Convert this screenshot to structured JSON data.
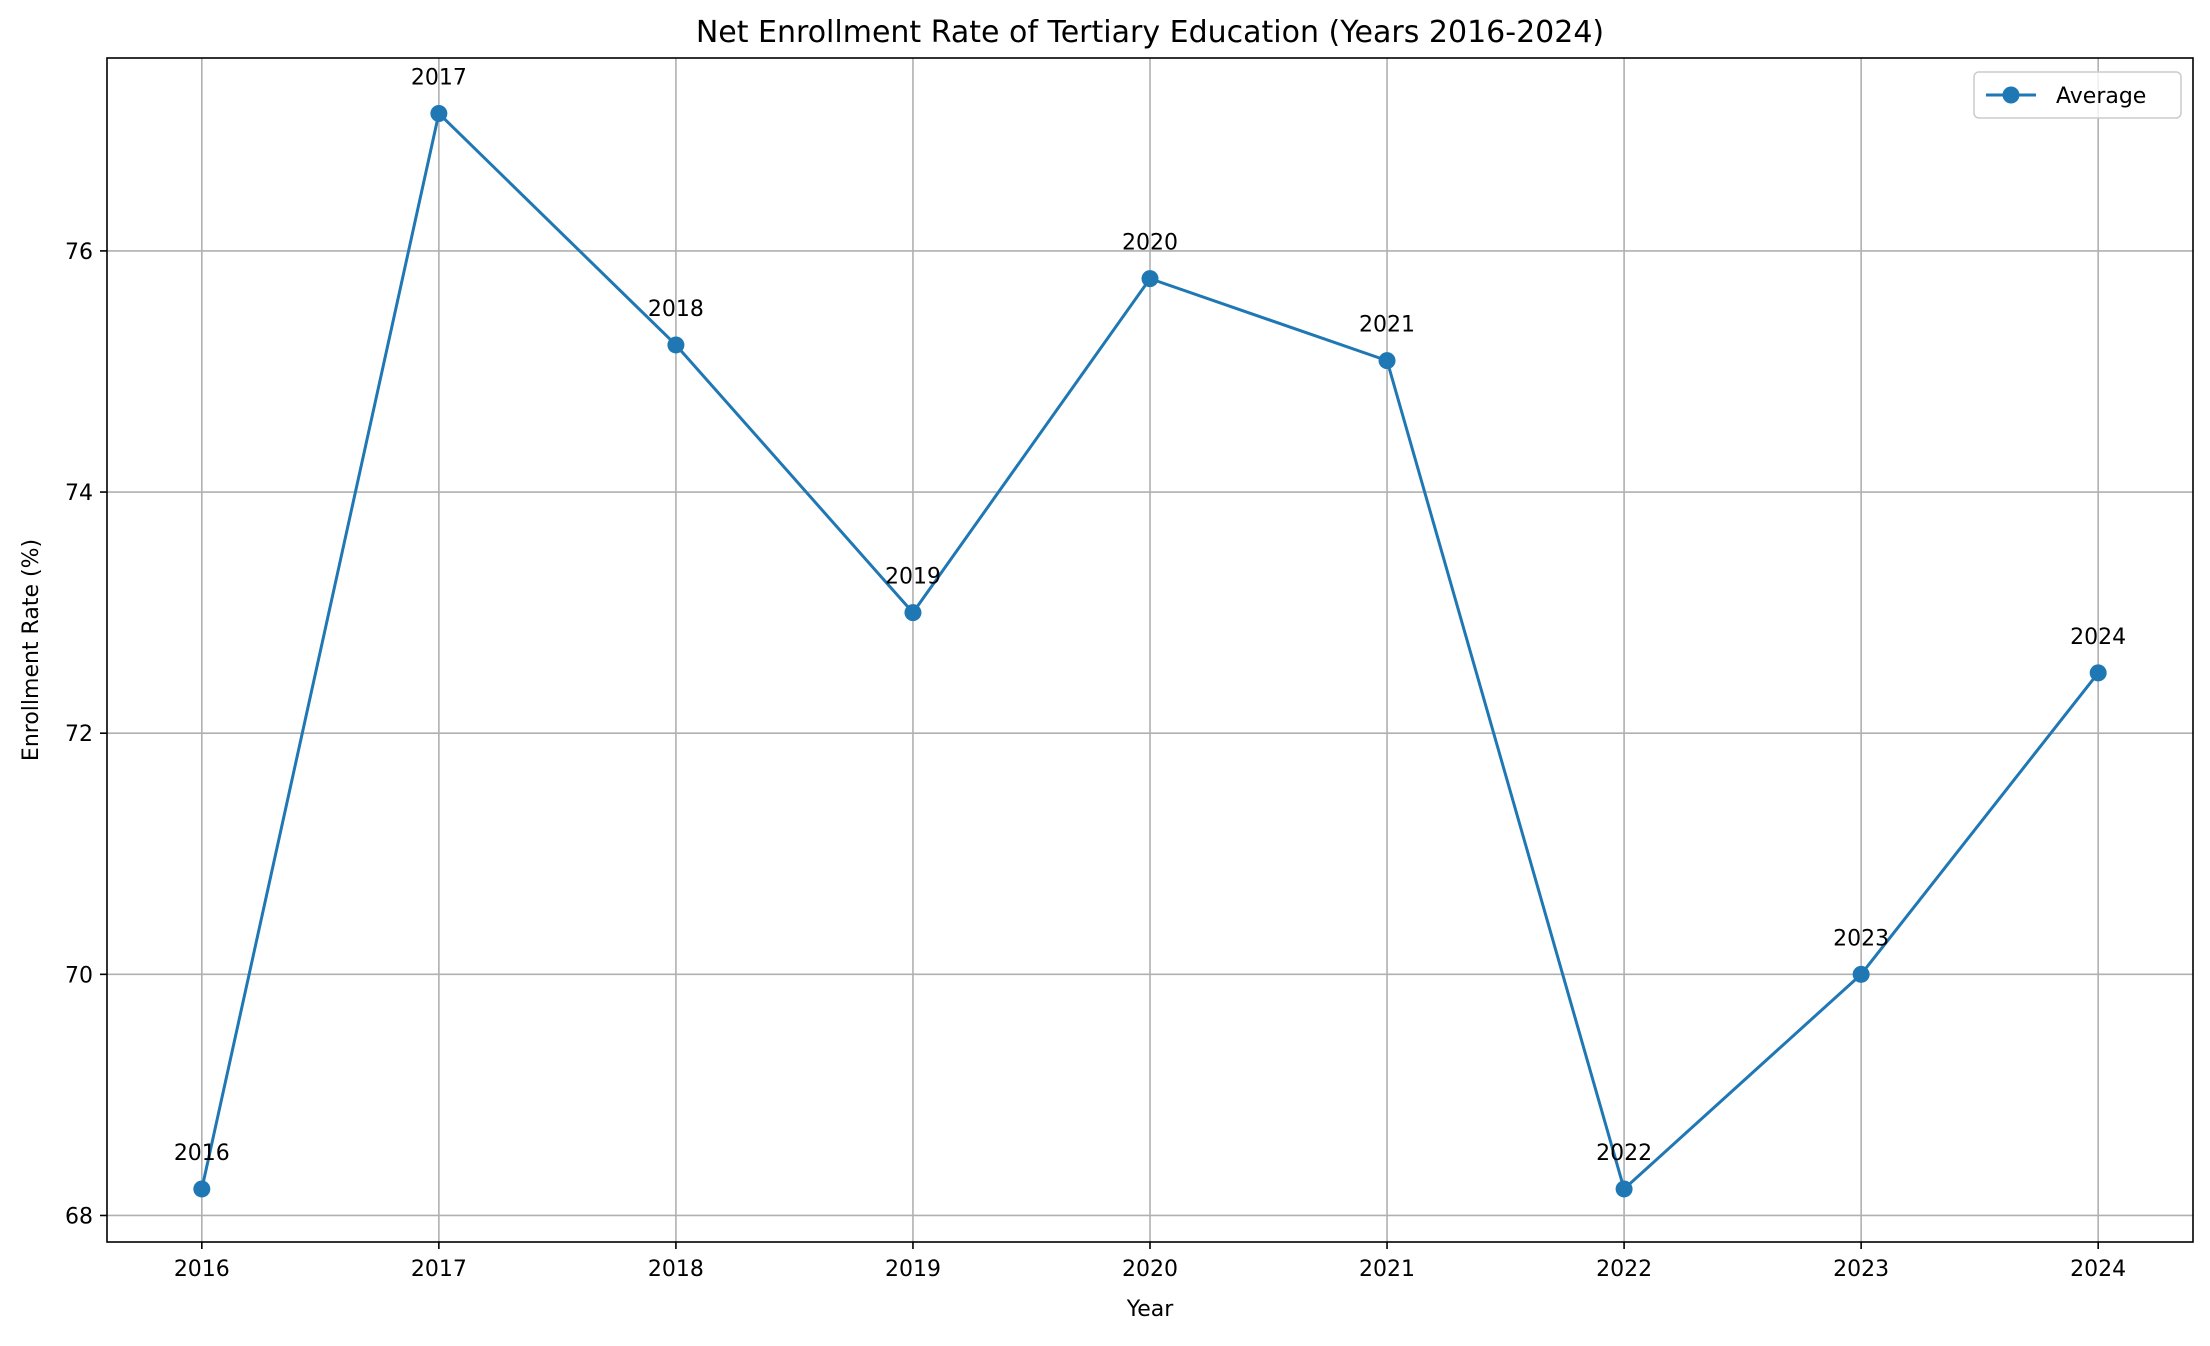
{
  "chart_data": {
    "type": "line",
    "title": "Net Enrollment Rate of Tertiary Education (Years 2016-2024)",
    "xlabel": "Year",
    "ylabel": "Enrollment Rate (%)",
    "x": [
      2016,
      2017,
      2018,
      2019,
      2020,
      2021,
      2022,
      2023,
      2024
    ],
    "x_tick_labels": [
      "2016",
      "2017",
      "2018",
      "2019",
      "2020",
      "2021",
      "2022",
      "2023",
      "2024"
    ],
    "y_ticks": [
      68,
      70,
      72,
      74,
      76
    ],
    "y_tick_labels": [
      "68",
      "70",
      "72",
      "74",
      "76"
    ],
    "xlim": [
      2015.6,
      2024.4
    ],
    "ylim": [
      67.78,
      77.6
    ],
    "grid": true,
    "legend_position": "top-right",
    "series": [
      {
        "name": "Average",
        "color": "#1f77b4",
        "marker": "circle",
        "values": [
          68.22,
          77.14,
          75.22,
          73.0,
          75.77,
          75.09,
          68.22,
          70.0,
          72.5
        ],
        "point_labels": [
          "2016",
          "2017",
          "2018",
          "2019",
          "2020",
          "2021",
          "2022",
          "2023",
          "2024"
        ]
      }
    ]
  }
}
